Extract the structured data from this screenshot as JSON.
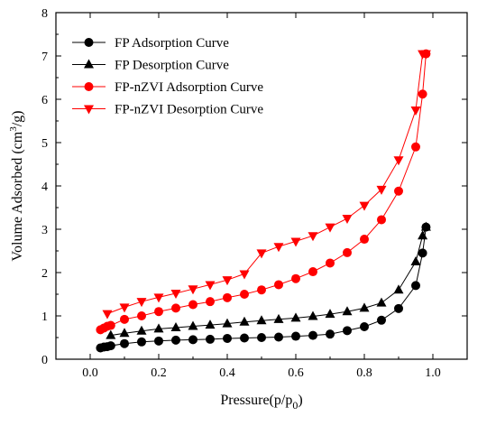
{
  "chart_data": {
    "type": "scatter",
    "xlabel": "Pressure(p/p0)",
    "ylabel": "Volume Adsorbed (cm3/g)",
    "xlim": [
      -0.1,
      1.1
    ],
    "ylim": [
      0,
      8
    ],
    "x_ticks": [
      "0.0",
      "0.2",
      "0.4",
      "0.6",
      "0.8",
      "1.0"
    ],
    "y_ticks": [
      "0",
      "1",
      "2",
      "3",
      "4",
      "5",
      "6",
      "7",
      "8"
    ],
    "grid": false,
    "legend_position": "top-left",
    "series": [
      {
        "name": "FP Adsorption Curve",
        "color": "#000000",
        "marker": "circle",
        "x": [
          0.03,
          0.04,
          0.05,
          0.06,
          0.1,
          0.15,
          0.2,
          0.25,
          0.3,
          0.35,
          0.4,
          0.45,
          0.5,
          0.55,
          0.6,
          0.65,
          0.7,
          0.75,
          0.8,
          0.85,
          0.9,
          0.95,
          0.97,
          0.98
        ],
        "y": [
          0.26,
          0.28,
          0.29,
          0.31,
          0.36,
          0.4,
          0.42,
          0.44,
          0.45,
          0.46,
          0.48,
          0.49,
          0.5,
          0.51,
          0.53,
          0.55,
          0.58,
          0.66,
          0.75,
          0.9,
          1.17,
          1.7,
          2.45,
          3.05
        ]
      },
      {
        "name": "FP Desorption Curve",
        "color": "#000000",
        "marker": "triangle-up",
        "x": [
          0.06,
          0.1,
          0.15,
          0.2,
          0.25,
          0.3,
          0.35,
          0.4,
          0.45,
          0.5,
          0.55,
          0.6,
          0.65,
          0.7,
          0.75,
          0.8,
          0.85,
          0.9,
          0.95,
          0.97,
          0.98
        ],
        "y": [
          0.55,
          0.6,
          0.65,
          0.7,
          0.73,
          0.76,
          0.79,
          0.82,
          0.86,
          0.89,
          0.92,
          0.95,
          0.99,
          1.04,
          1.1,
          1.18,
          1.3,
          1.6,
          2.25,
          2.85,
          3.05
        ]
      },
      {
        "name": "FP-nZVI Adsorption Curve",
        "color": "#ff0000",
        "marker": "circle",
        "x": [
          0.03,
          0.04,
          0.05,
          0.06,
          0.1,
          0.15,
          0.2,
          0.25,
          0.3,
          0.35,
          0.4,
          0.45,
          0.5,
          0.55,
          0.6,
          0.65,
          0.7,
          0.75,
          0.8,
          0.85,
          0.9,
          0.95,
          0.97,
          0.98
        ],
        "y": [
          0.68,
          0.72,
          0.76,
          0.78,
          0.92,
          1.0,
          1.1,
          1.18,
          1.26,
          1.33,
          1.42,
          1.5,
          1.6,
          1.72,
          1.86,
          2.02,
          2.22,
          2.46,
          2.77,
          3.22,
          3.88,
          4.9,
          6.12,
          7.05
        ]
      },
      {
        "name": "FP-nZVI Desorption Curve",
        "color": "#ff0000",
        "marker": "triangle-down",
        "x": [
          0.05,
          0.1,
          0.15,
          0.2,
          0.25,
          0.3,
          0.35,
          0.4,
          0.45,
          0.5,
          0.55,
          0.6,
          0.65,
          0.7,
          0.75,
          0.8,
          0.85,
          0.9,
          0.95,
          0.97,
          0.98
        ],
        "y": [
          1.05,
          1.2,
          1.33,
          1.43,
          1.52,
          1.62,
          1.72,
          1.83,
          1.97,
          2.45,
          2.6,
          2.72,
          2.85,
          3.05,
          3.25,
          3.55,
          3.92,
          4.6,
          5.75,
          7.05,
          7.05
        ]
      }
    ]
  }
}
